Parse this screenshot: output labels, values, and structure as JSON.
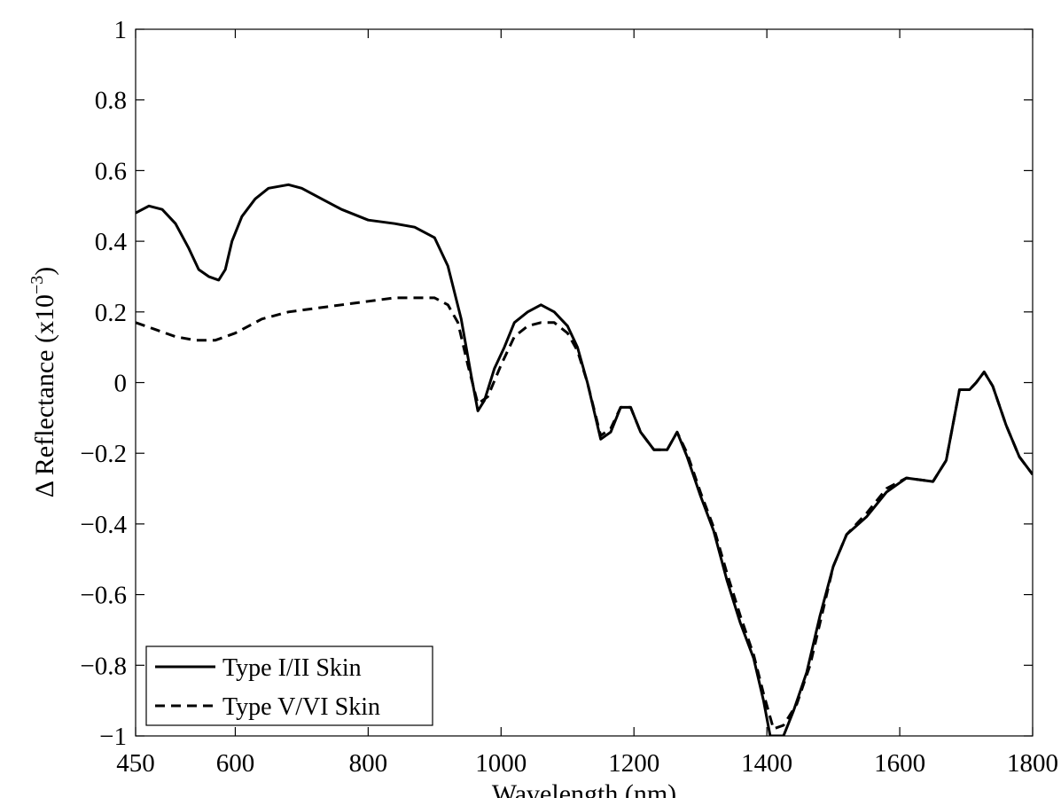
{
  "chart_data": {
    "type": "line",
    "title": "",
    "xlabel": "Wavelength (nm)",
    "ylabel_prefix": "Δ Reflectance (x10",
    "ylabel_exp": "−3",
    "ylabel_suffix": ")",
    "xlim": [
      450,
      1800
    ],
    "ylim": [
      -1,
      1
    ],
    "xticks": [
      450,
      600,
      800,
      1000,
      1200,
      1400,
      1600,
      1800
    ],
    "xtick_labels": [
      "450",
      "600",
      "800",
      "1000",
      "1200",
      "1400",
      "1600",
      "1800"
    ],
    "yticks": [
      -1,
      -0.8,
      -0.6,
      -0.4,
      -0.2,
      0,
      0.2,
      0.4,
      0.6,
      0.8,
      1
    ],
    "ytick_labels": [
      "−1",
      "−0.8",
      "−0.6",
      "−0.4",
      "−0.2",
      "0",
      "0.2",
      "0.4",
      "0.6",
      "0.8",
      "1"
    ],
    "grid": false,
    "legend_position": "bottom-left",
    "series": [
      {
        "name": "Type I/II Skin",
        "style": "solid",
        "color": "#000000",
        "points": [
          [
            450,
            0.48
          ],
          [
            470,
            0.5
          ],
          [
            490,
            0.49
          ],
          [
            510,
            0.45
          ],
          [
            530,
            0.38
          ],
          [
            545,
            0.32
          ],
          [
            560,
            0.3
          ],
          [
            575,
            0.29
          ],
          [
            585,
            0.32
          ],
          [
            595,
            0.4
          ],
          [
            610,
            0.47
          ],
          [
            630,
            0.52
          ],
          [
            650,
            0.55
          ],
          [
            680,
            0.56
          ],
          [
            700,
            0.55
          ],
          [
            730,
            0.52
          ],
          [
            760,
            0.49
          ],
          [
            800,
            0.46
          ],
          [
            840,
            0.45
          ],
          [
            870,
            0.44
          ],
          [
            900,
            0.41
          ],
          [
            920,
            0.33
          ],
          [
            940,
            0.18
          ],
          [
            955,
            0.02
          ],
          [
            965,
            -0.08
          ],
          [
            975,
            -0.05
          ],
          [
            990,
            0.04
          ],
          [
            1005,
            0.1
          ],
          [
            1020,
            0.17
          ],
          [
            1040,
            0.2
          ],
          [
            1060,
            0.22
          ],
          [
            1080,
            0.2
          ],
          [
            1100,
            0.16
          ],
          [
            1115,
            0.1
          ],
          [
            1130,
            0.0
          ],
          [
            1150,
            -0.16
          ],
          [
            1165,
            -0.14
          ],
          [
            1180,
            -0.07
          ],
          [
            1195,
            -0.07
          ],
          [
            1210,
            -0.14
          ],
          [
            1230,
            -0.19
          ],
          [
            1250,
            -0.19
          ],
          [
            1265,
            -0.14
          ],
          [
            1280,
            -0.21
          ],
          [
            1300,
            -0.32
          ],
          [
            1320,
            -0.42
          ],
          [
            1340,
            -0.56
          ],
          [
            1360,
            -0.68
          ],
          [
            1380,
            -0.78
          ],
          [
            1395,
            -0.9
          ],
          [
            1405,
            -1.0
          ],
          [
            1425,
            -1.0
          ],
          [
            1440,
            -0.93
          ],
          [
            1460,
            -0.82
          ],
          [
            1480,
            -0.66
          ],
          [
            1500,
            -0.52
          ],
          [
            1520,
            -0.43
          ],
          [
            1550,
            -0.38
          ],
          [
            1580,
            -0.31
          ],
          [
            1610,
            -0.27
          ],
          [
            1650,
            -0.28
          ],
          [
            1670,
            -0.22
          ],
          [
            1690,
            -0.02
          ],
          [
            1705,
            -0.02
          ],
          [
            1715,
            0.0
          ],
          [
            1727,
            0.03
          ],
          [
            1740,
            -0.01
          ],
          [
            1760,
            -0.12
          ],
          [
            1780,
            -0.21
          ],
          [
            1800,
            -0.26
          ]
        ]
      },
      {
        "name": "Type V/VI Skin",
        "style": "dashed",
        "color": "#000000",
        "points": [
          [
            450,
            0.17
          ],
          [
            480,
            0.15
          ],
          [
            510,
            0.13
          ],
          [
            540,
            0.12
          ],
          [
            570,
            0.12
          ],
          [
            600,
            0.14
          ],
          [
            640,
            0.18
          ],
          [
            680,
            0.2
          ],
          [
            720,
            0.21
          ],
          [
            760,
            0.22
          ],
          [
            800,
            0.23
          ],
          [
            840,
            0.24
          ],
          [
            870,
            0.24
          ],
          [
            900,
            0.24
          ],
          [
            920,
            0.22
          ],
          [
            935,
            0.17
          ],
          [
            950,
            0.05
          ],
          [
            965,
            -0.06
          ],
          [
            980,
            -0.04
          ],
          [
            1000,
            0.05
          ],
          [
            1020,
            0.13
          ],
          [
            1040,
            0.16
          ],
          [
            1060,
            0.17
          ],
          [
            1080,
            0.17
          ],
          [
            1100,
            0.14
          ],
          [
            1115,
            0.09
          ],
          [
            1130,
            0.0
          ],
          [
            1150,
            -0.15
          ],
          [
            1165,
            -0.13
          ],
          [
            1180,
            -0.07
          ],
          [
            1195,
            -0.07
          ],
          [
            1210,
            -0.14
          ],
          [
            1230,
            -0.19
          ],
          [
            1250,
            -0.19
          ],
          [
            1265,
            -0.14
          ],
          [
            1280,
            -0.2
          ],
          [
            1300,
            -0.31
          ],
          [
            1320,
            -0.41
          ],
          [
            1340,
            -0.54
          ],
          [
            1360,
            -0.66
          ],
          [
            1380,
            -0.77
          ],
          [
            1395,
            -0.88
          ],
          [
            1410,
            -0.98
          ],
          [
            1425,
            -0.97
          ],
          [
            1445,
            -0.91
          ],
          [
            1465,
            -0.8
          ],
          [
            1485,
            -0.64
          ],
          [
            1500,
            -0.52
          ],
          [
            1520,
            -0.43
          ],
          [
            1550,
            -0.37
          ],
          [
            1580,
            -0.3
          ],
          [
            1610,
            -0.27
          ],
          [
            1650,
            -0.28
          ],
          [
            1670,
            -0.22
          ],
          [
            1690,
            -0.02
          ],
          [
            1705,
            -0.02
          ],
          [
            1715,
            0.0
          ],
          [
            1727,
            0.03
          ],
          [
            1740,
            -0.01
          ],
          [
            1760,
            -0.12
          ],
          [
            1780,
            -0.21
          ],
          [
            1800,
            -0.26
          ]
        ]
      }
    ]
  }
}
